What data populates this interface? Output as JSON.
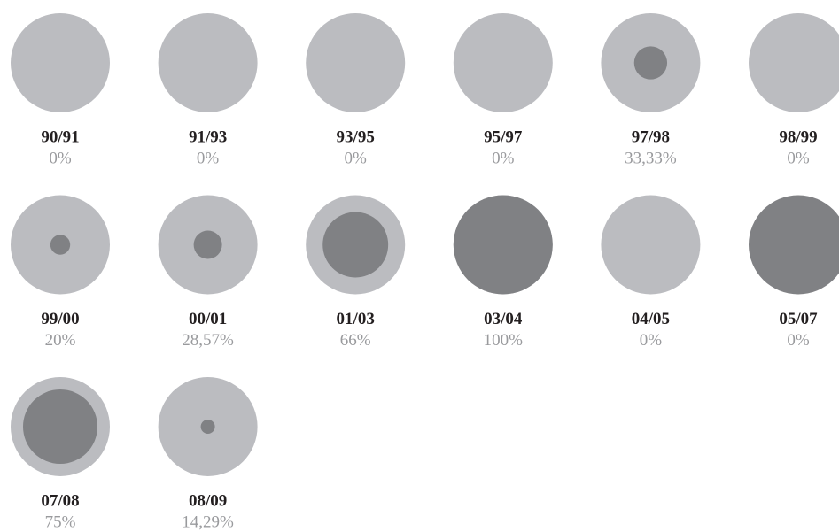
{
  "chart_data": {
    "type": "proportional-circles",
    "categories": [
      "90/91",
      "91/93",
      "93/95",
      "95/97",
      "97/98",
      "98/99",
      "99/00",
      "00/01",
      "01/03",
      "03/04",
      "04/05",
      "05/07",
      "07/08",
      "08/09"
    ],
    "values": [
      0,
      0,
      0,
      0,
      33.33,
      0,
      20,
      28.57,
      66,
      100,
      0,
      0,
      75,
      14.29
    ],
    "value_labels": [
      "0%",
      "0%",
      "0%",
      "0%",
      "33,33%",
      "0%",
      "20%",
      "28,57%",
      "66%",
      "100%",
      "0%",
      "0%",
      "75%",
      "14,29%"
    ],
    "outer_colors": [
      "#bbbcc0",
      "#bbbcc0",
      "#bbbcc0",
      "#bbbcc0",
      "#bbbcc0",
      "#bbbcc0",
      "#bbbcc0",
      "#bbbcc0",
      "#bbbcc0",
      "#bbbcc0",
      "#bbbcc0",
      "#808184",
      "#bbbcc0",
      "#bbbcc0"
    ],
    "color": "#808184",
    "ylim": [
      0,
      100
    ]
  }
}
